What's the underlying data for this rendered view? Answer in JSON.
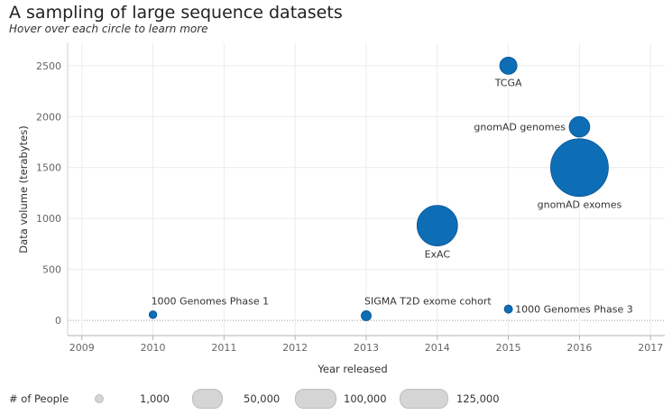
{
  "header": {
    "title": "A sampling of large sequence datasets",
    "subtitle": "Hover over each circle to learn more"
  },
  "chart_data": {
    "type": "scatter",
    "title": "A sampling of large sequence datasets",
    "xlabel": "Year released",
    "ylabel": "Data volume (terabytes)",
    "xlim": [
      2008.8,
      2017.2
    ],
    "ylim": [
      -150,
      2720
    ],
    "xticks": [
      2009,
      2010,
      2011,
      2012,
      2013,
      2014,
      2015,
      2016,
      2017
    ],
    "yticks": [
      0,
      500,
      1000,
      1500,
      2000,
      2500
    ],
    "size_field": "# of People",
    "color": "#0d6db5",
    "points": [
      {
        "name": "1000 Genomes Phase 1",
        "x": 2010,
        "y": 55,
        "people": 1092,
        "label_pos": "above-right"
      },
      {
        "name": "SIGMA T2D exome cohort",
        "x": 2013,
        "y": 45,
        "people": 3700,
        "label_pos": "above-right"
      },
      {
        "name": "1000 Genomes Phase 3",
        "x": 2015,
        "y": 110,
        "people": 2504,
        "label_pos": "right"
      },
      {
        "name": "ExAC",
        "x": 2014,
        "y": 930,
        "people": 60706,
        "label_pos": "below"
      },
      {
        "name": "TCGA",
        "x": 2015,
        "y": 2500,
        "people": 11000,
        "label_pos": "below"
      },
      {
        "name": "gnomAD genomes",
        "x": 2016,
        "y": 1900,
        "people": 15708,
        "label_pos": "left"
      },
      {
        "name": "gnomAD exomes",
        "x": 2016,
        "y": 1500,
        "people": 123136,
        "label_pos": "below"
      }
    ]
  },
  "legend": {
    "title": "# of People",
    "items": [
      {
        "label": "1,000",
        "value": 1000
      },
      {
        "label": "50,000",
        "value": 50000
      },
      {
        "label": "100,000",
        "value": 100000
      },
      {
        "label": "125,000",
        "value": 125000
      }
    ]
  }
}
